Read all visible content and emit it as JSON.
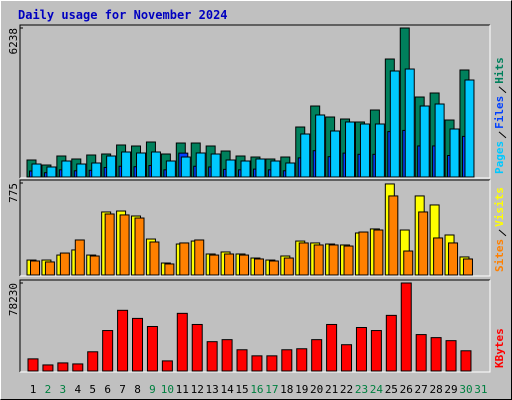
{
  "chart_data": [
    {
      "type": "bar",
      "title": "Daily usage for November 2024",
      "ylim": [
        0,
        6238
      ],
      "yticks": [
        6238
      ],
      "series": [
        {
          "name": "Hits",
          "color": "#00805c",
          "values": [
            712,
            502,
            879,
            754,
            921,
            963,
            1340,
            1298,
            1465,
            963,
            1423,
            1423,
            1298,
            1088,
            879,
            837,
            754,
            837,
            2093,
            2972,
            2512,
            2428,
            2303,
            2805,
            4940,
            6238,
            3349,
            3517,
            2386,
            4480,
            null
          ]
        },
        {
          "name": "Files",
          "color": "#0040ff",
          "values": [
            250,
            180,
            300,
            260,
            280,
            400,
            450,
            430,
            480,
            300,
            1000,
            450,
            420,
            320,
            300,
            330,
            300,
            260,
            800,
            1100,
            850,
            1000,
            950,
            950,
            1900,
            1950,
            1300,
            1300,
            900,
            1700,
            null
          ]
        },
        {
          "name": "Pages",
          "color": "#00c8ff",
          "values": [
            544,
            419,
            670,
            544,
            586,
            879,
            1047,
            1005,
            1047,
            670,
            837,
            1005,
            963,
            712,
            670,
            754,
            670,
            586,
            1800,
            2596,
            1926,
            2303,
            2219,
            2219,
            4438,
            4521,
            2972,
            3056,
            2010,
            4061,
            null
          ]
        }
      ]
    },
    {
      "type": "bar",
      "ylim": [
        0,
        775
      ],
      "yticks": [
        775
      ],
      "series": [
        {
          "name": "Visits",
          "color": "#ffff00",
          "values": [
            126,
            126,
            168,
            211,
            168,
            531,
            539,
            497,
            303,
            101,
            261,
            286,
            177,
            194,
            177,
            143,
            126,
            160,
            286,
            270,
            261,
            253,
            354,
            388,
            767,
            379,
            666,
            590,
            337,
            152,
            null
          ]
        },
        {
          "name": "Sites",
          "color": "#ff8000",
          "values": [
            118,
            110,
            185,
            295,
            160,
            514,
            506,
            480,
            278,
            93,
            270,
            295,
            168,
            177,
            168,
            135,
            118,
            143,
            270,
            253,
            253,
            244,
            362,
            379,
            666,
            202,
            531,
            312,
            270,
            135,
            null
          ]
        }
      ]
    },
    {
      "type": "bar",
      "ylim": [
        0,
        78230
      ],
      "yticks": [
        78230
      ],
      "categories": [
        "1",
        "2",
        "3",
        "4",
        "5",
        "6",
        "7",
        "8",
        "9",
        "10",
        "11",
        "12",
        "13",
        "14",
        "15",
        "16",
        "17",
        "18",
        "19",
        "20",
        "21",
        "22",
        "23",
        "24",
        "25",
        "26",
        "27",
        "28",
        "29",
        "30",
        "31"
      ],
      "category_colors": [
        "#000000",
        "#008040",
        "#008040",
        "#000000",
        "#000000",
        "#000000",
        "#000000",
        "#000000",
        "#008040",
        "#008040",
        "#000000",
        "#000000",
        "#000000",
        "#000000",
        "#000000",
        "#008040",
        "#008040",
        "#000000",
        "#000000",
        "#000000",
        "#000000",
        "#000000",
        "#008040",
        "#008040",
        "#000000",
        "#000000",
        "#000000",
        "#000000",
        "#000000",
        "#008040",
        "#008040"
      ],
      "series": [
        {
          "name": "KBytes",
          "color": "#ff0000",
          "values": [
            10790,
            5395,
            7193,
            6294,
            17085,
            35968,
            53951,
            46758,
            39565,
            8992,
            51253,
            41364,
            26075,
            27873,
            18883,
            13487,
            13487,
            18883,
            19782,
            27873,
            41364,
            23378,
            38666,
            35968,
            49455,
            78230,
            32371,
            29673,
            26975,
            17984,
            null
          ]
        }
      ]
    }
  ]
}
